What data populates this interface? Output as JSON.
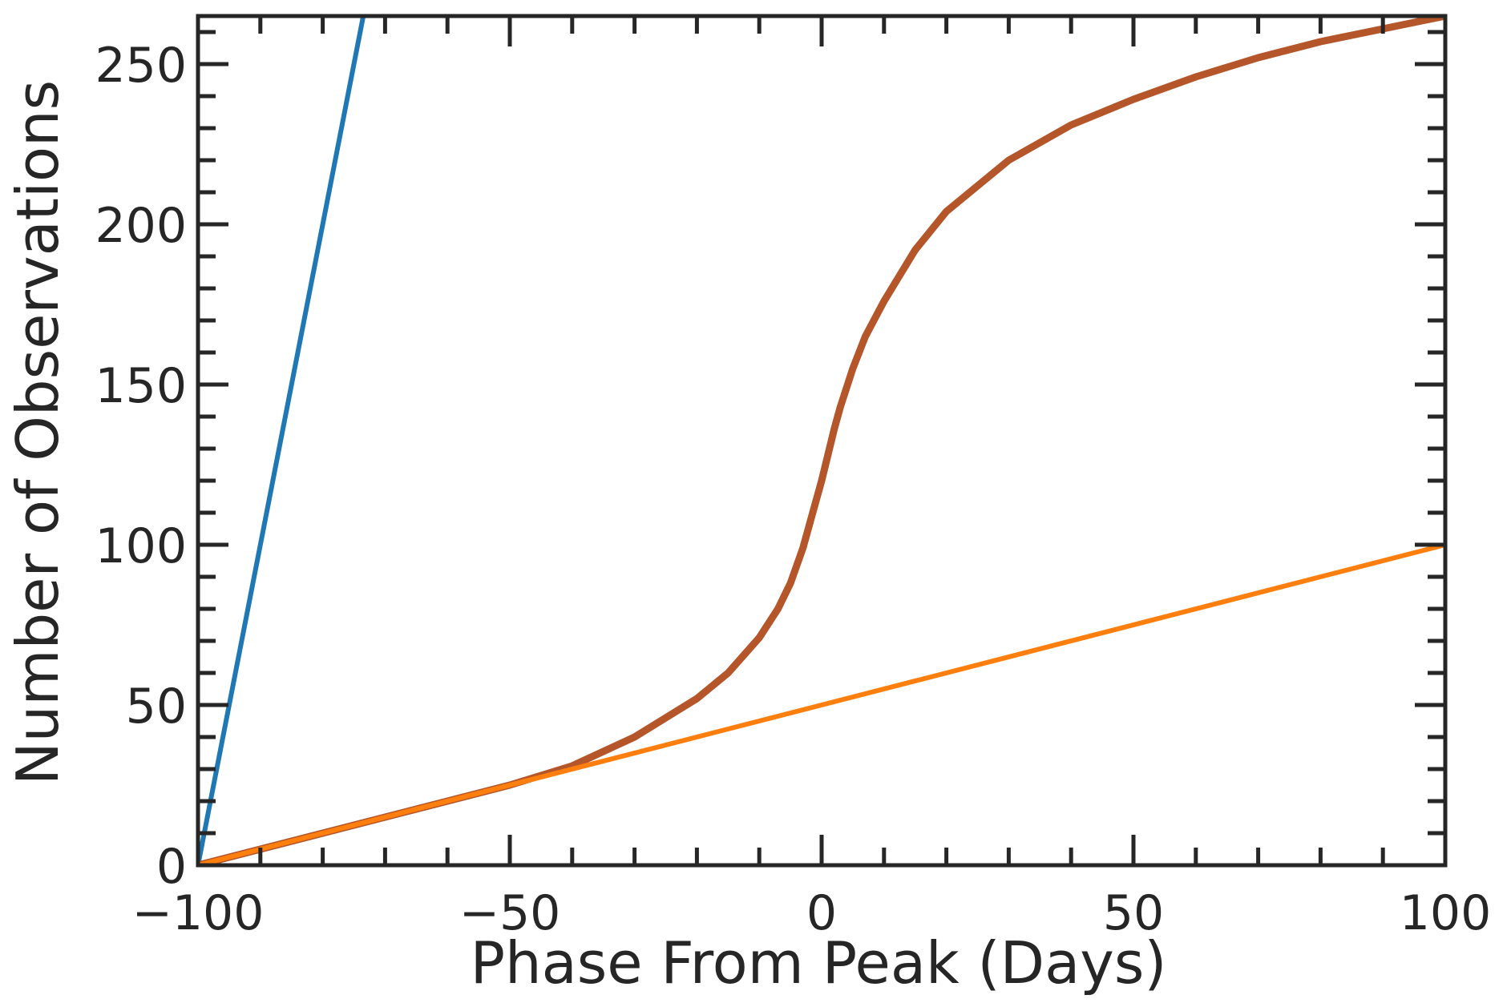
{
  "chart_data": {
    "type": "line",
    "title": "",
    "xlabel": "Phase From Peak (Days)",
    "ylabel": "Number of Observations",
    "xlim": [
      -100,
      100
    ],
    "ylim": [
      0,
      265
    ],
    "xticks": [
      -100,
      -50,
      0,
      50,
      100
    ],
    "xtick_labels": [
      "−100",
      "−50",
      "0",
      "50",
      "100"
    ],
    "yticks": [
      0,
      50,
      100,
      150,
      200,
      250
    ],
    "ytick_labels": [
      "0",
      "50",
      "100",
      "150",
      "200",
      "250"
    ],
    "x_minor_step": 10,
    "y_minor_step": 10,
    "grid": false,
    "legend": "none",
    "series": [
      {
        "color": "#1f77b4",
        "x": [
          -100,
          -73.5
        ],
        "y": [
          0,
          265
        ]
      },
      {
        "color": "#b5562a",
        "x": [
          -100,
          -80,
          -60,
          -50,
          -40,
          -30,
          -20,
          -15,
          -10,
          -7,
          -5,
          -3,
          -1,
          0,
          1,
          2,
          3,
          5,
          7,
          10,
          15,
          20,
          30,
          40,
          50,
          60,
          70,
          80,
          90,
          100
        ],
        "y": [
          0,
          10,
          20,
          25,
          31,
          40,
          52,
          60,
          71,
          80,
          88,
          99,
          113,
          120,
          128,
          136,
          143,
          155,
          165,
          176,
          192,
          204,
          220,
          231,
          239,
          246,
          252,
          257,
          261,
          265
        ]
      },
      {
        "color": "#ff7f0e",
        "x": [
          -100,
          100
        ],
        "y": [
          0,
          100
        ]
      }
    ]
  }
}
